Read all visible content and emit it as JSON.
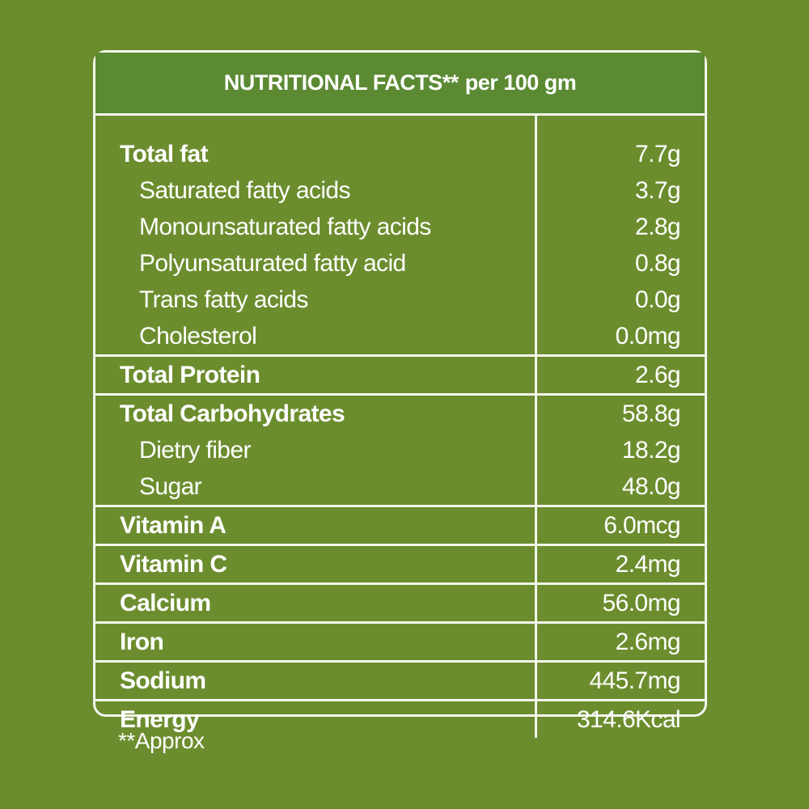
{
  "header": {
    "title": "NUTRITIONAL FACTS**",
    "subtitle": "per 100 gm"
  },
  "groups": [
    {
      "rows": [
        {
          "label": "Total fat",
          "value": "7.7g"
        },
        {
          "label": "Saturated fatty acids",
          "value": "3.7g"
        },
        {
          "label": "Monounsaturated fatty acids",
          "value": "2.8g"
        },
        {
          "label": "Polyunsaturated fatty acid",
          "value": "0.8g"
        },
        {
          "label": "Trans fatty acids",
          "value": "0.0g"
        },
        {
          "label": "Cholesterol",
          "value": "0.0mg"
        }
      ]
    },
    {
      "rows": [
        {
          "label": "Total Protein",
          "value": "2.6g"
        }
      ]
    },
    {
      "rows": [
        {
          "label": "Total Carbohydrates",
          "value": "58.8g"
        },
        {
          "label": "Dietry fiber",
          "value": "18.2g"
        },
        {
          "label": "Sugar",
          "value": "48.0g"
        }
      ]
    },
    {
      "rows": [
        {
          "label": "Vitamin A",
          "value": "6.0mcg"
        }
      ]
    },
    {
      "rows": [
        {
          "label": "Vitamin C",
          "value": "2.4mg"
        }
      ]
    },
    {
      "rows": [
        {
          "label": "Calcium",
          "value": "56.0mg"
        }
      ]
    },
    {
      "rows": [
        {
          "label": "Iron",
          "value": "2.6mg"
        }
      ]
    },
    {
      "rows": [
        {
          "label": "Sodium",
          "value": "445.7mg"
        }
      ]
    },
    {
      "rows": [
        {
          "label": "Energy",
          "value": "314.6Kcal"
        }
      ]
    }
  ],
  "footnote": "**Approx",
  "colors": {
    "background": "#6c8d2e",
    "header": "#5b8a33",
    "rule": "#f2f5ec",
    "text": "#ffffff"
  }
}
